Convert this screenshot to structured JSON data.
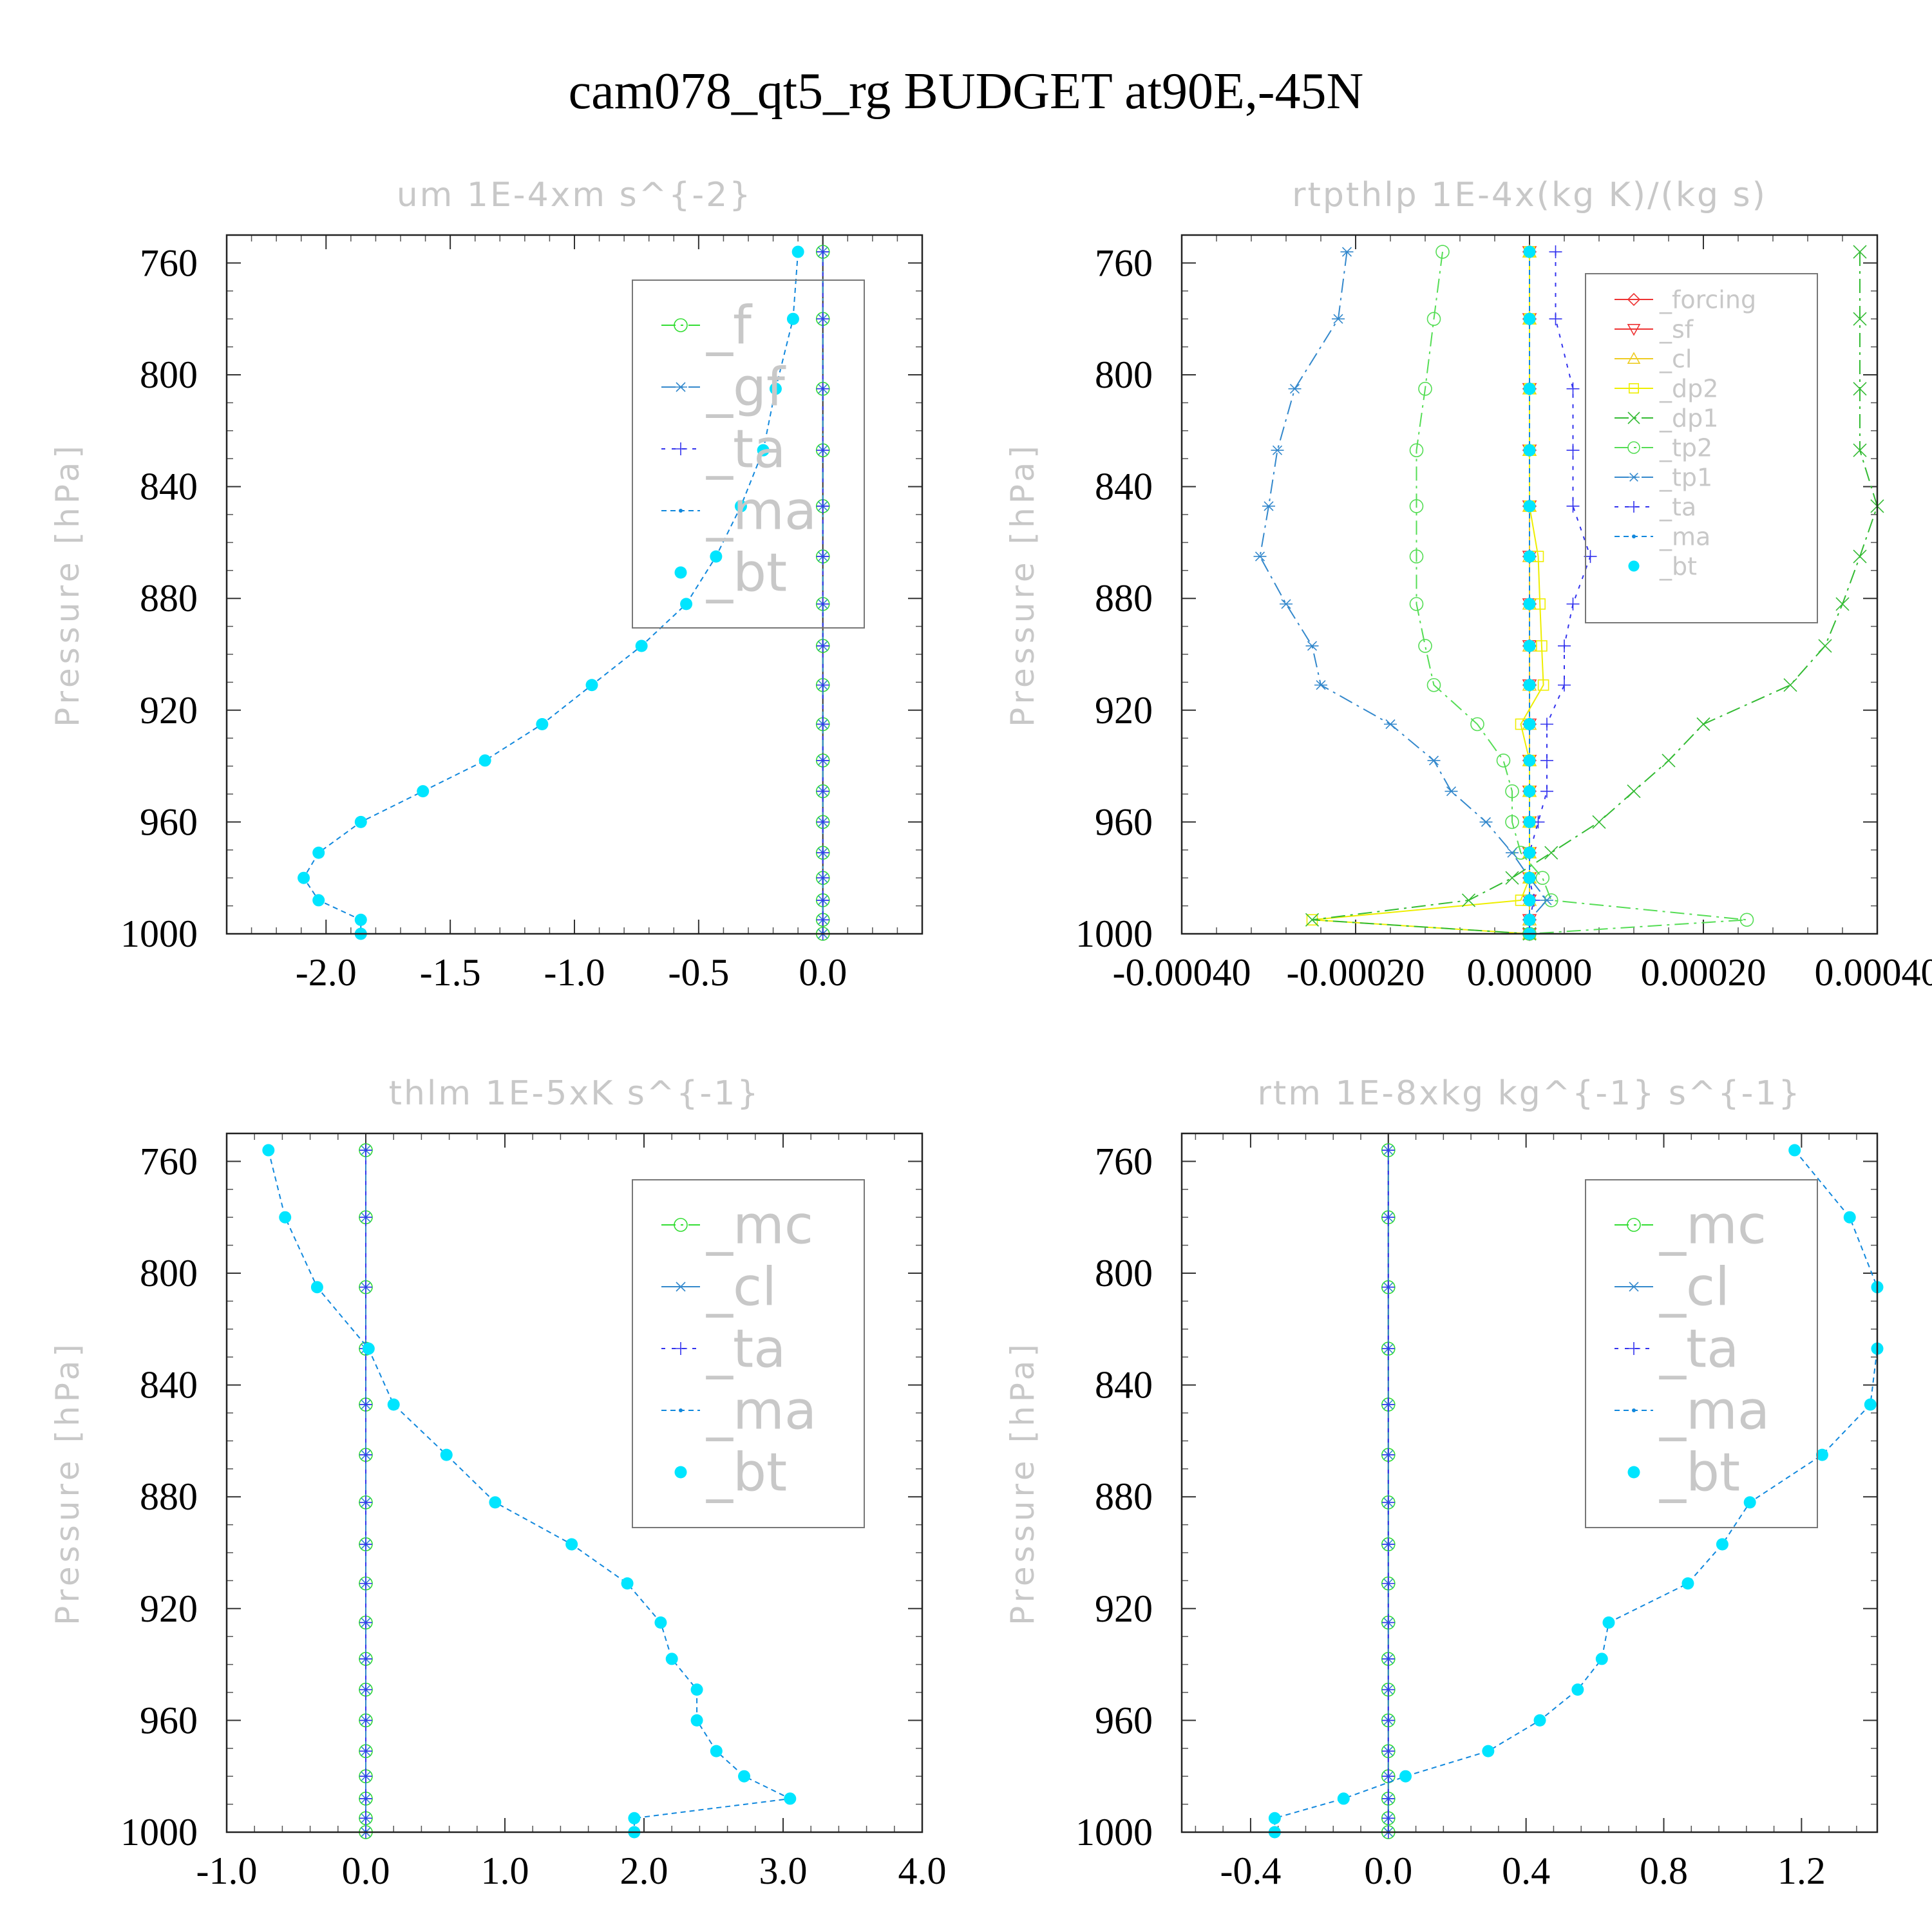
{
  "figure": {
    "title": "cam078_qt5_rg  BUDGET at90E,-45N"
  },
  "chart_data": [
    {
      "id": "um",
      "type": "line",
      "title": "um   1E-4xm s^{-2}",
      "ylabel": "Pressure [hPa]",
      "xlim": [
        -2.4,
        0.4
      ],
      "ylim": [
        1000,
        750
      ],
      "xticks": [
        -2.0,
        -1.5,
        -1.0,
        -0.5,
        0.0
      ],
      "xtick_labels": [
        "-2.0",
        "-1.5",
        "-1.0",
        "-0.5",
        "0.0"
      ],
      "yticks": [
        760,
        800,
        840,
        880,
        920,
        960,
        1000
      ],
      "ytick_labels": [
        "760",
        "800",
        "840",
        "880",
        "920",
        "960",
        "1000"
      ],
      "levels": [
        756,
        780,
        805,
        827,
        847,
        865,
        882,
        897,
        911,
        925,
        938,
        949,
        960,
        971,
        980,
        988,
        995,
        1000
      ],
      "series": [
        {
          "name": "_f",
          "color": "#33dd33",
          "marker": "circle",
          "values": [
            0,
            0,
            0,
            0,
            0,
            0,
            0,
            0,
            0,
            0,
            0,
            0,
            0,
            0,
            0,
            0,
            0,
            0
          ]
        },
        {
          "name": "_gf",
          "color": "#3388cc",
          "marker": "asterisk",
          "values": [
            0,
            0,
            0,
            0,
            0,
            0,
            0,
            0,
            0,
            0,
            0,
            0,
            0,
            0,
            0,
            0,
            0,
            0
          ]
        },
        {
          "name": "_ta",
          "color": "#3333ee",
          "marker": "plus",
          "values": [
            0,
            0,
            0,
            0,
            0,
            0,
            0,
            0,
            0,
            0,
            0,
            0,
            0,
            0,
            0,
            0,
            0,
            0
          ]
        },
        {
          "name": "_ma",
          "color": "#1188dd",
          "marker": "dot",
          "values": [
            -0.1,
            -0.12,
            -0.19,
            -0.24,
            -0.33,
            -0.43,
            -0.55,
            -0.73,
            -0.93,
            -1.13,
            -1.36,
            -1.61,
            -1.86,
            -2.03,
            -2.09,
            -2.03,
            -1.86,
            -1.86
          ]
        },
        {
          "name": "_bt",
          "color": "#00e5ff",
          "marker": "bigdot",
          "values": [
            -0.1,
            -0.12,
            -0.19,
            -0.24,
            -0.33,
            -0.43,
            -0.55,
            -0.73,
            -0.93,
            -1.13,
            -1.36,
            -1.61,
            -1.86,
            -2.03,
            -2.09,
            -2.03,
            -1.86,
            -1.86
          ]
        }
      ]
    },
    {
      "id": "rtpthlp",
      "type": "line",
      "title": "rtpthlp   1E-4x(kg K)/(kg s)",
      "ylabel": "Pressure [hPa]",
      "xlim": [
        -0.0004,
        0.0004
      ],
      "ylim": [
        1000,
        750
      ],
      "xticks": [
        -0.0004,
        -0.0002,
        0.0,
        0.0002,
        0.0004
      ],
      "xtick_labels": [
        "-0.00040",
        "-0.00020",
        "0.00000",
        "0.00020",
        "0.00040"
      ],
      "yticks": [
        760,
        800,
        840,
        880,
        920,
        960,
        1000
      ],
      "ytick_labels": [
        "760",
        "800",
        "840",
        "880",
        "920",
        "960",
        "1000"
      ],
      "levels": [
        756,
        780,
        805,
        827,
        847,
        865,
        882,
        897,
        911,
        925,
        938,
        949,
        960,
        971,
        980,
        988,
        995,
        1000
      ],
      "series": [
        {
          "name": "_forcing",
          "color": "#ee3333",
          "marker": "diamond",
          "values": [
            0,
            0,
            0,
            0,
            0,
            0,
            0,
            0,
            0,
            0,
            0,
            0,
            0,
            0,
            0,
            0,
            0,
            0
          ]
        },
        {
          "name": "_sf",
          "color": "#ee3333",
          "marker": "tri-down",
          "values": [
            0,
            0,
            0,
            0,
            0,
            0,
            0,
            0,
            0,
            0,
            0,
            0,
            0,
            0,
            0,
            0,
            0,
            0
          ]
        },
        {
          "name": "_cl",
          "color": "#eecc22",
          "marker": "tri-up",
          "values": [
            0,
            0,
            0,
            0,
            0,
            0,
            0,
            0,
            0,
            0,
            0,
            0,
            0,
            0,
            0,
            0,
            0,
            0
          ]
        },
        {
          "name": "_dp2",
          "color": "#eeee00",
          "marker": "square",
          "values": [
            0,
            0,
            0,
            0,
            0,
            1e-05,
            1.2e-05,
            1.4e-05,
            1.6e-05,
            -1e-05,
            0,
            0,
            0,
            0,
            0,
            -1e-05,
            -0.00025,
            0
          ]
        },
        {
          "name": "_dp1",
          "color": "#33bb33",
          "marker": "x",
          "values": [
            0.00038,
            0.00038,
            0.00038,
            0.00038,
            0.0004,
            0.00038,
            0.00036,
            0.00034,
            0.0003,
            0.0002,
            0.00016,
            0.00012,
            8e-05,
            2.5e-05,
            -2e-05,
            -7e-05,
            -0.00025,
            0
          ]
        },
        {
          "name": "_tp2",
          "color": "#55dd55",
          "marker": "circle",
          "values": [
            -0.0001,
            -0.00011,
            -0.00012,
            -0.00013,
            -0.00013,
            -0.00013,
            -0.00013,
            -0.00012,
            -0.00011,
            -6e-05,
            -3e-05,
            -2e-05,
            -2e-05,
            -1e-05,
            1.5e-05,
            2.5e-05,
            0.00025,
            0
          ]
        },
        {
          "name": "_tp1",
          "color": "#3388cc",
          "marker": "asterisk",
          "values": [
            -0.00021,
            -0.00022,
            -0.00027,
            -0.00029,
            -0.0003,
            -0.00031,
            -0.00028,
            -0.00025,
            -0.00024,
            -0.00016,
            -0.00011,
            -9e-05,
            -5e-05,
            -2e-05,
            0,
            2e-05,
            0,
            0
          ]
        },
        {
          "name": "_ta",
          "color": "#3333ee",
          "marker": "plus",
          "values": [
            3e-05,
            3e-05,
            5e-05,
            5e-05,
            5e-05,
            7e-05,
            5e-05,
            4e-05,
            4e-05,
            2e-05,
            2e-05,
            2e-05,
            1e-05,
            0,
            0,
            5e-06,
            0,
            0
          ]
        },
        {
          "name": "_ma",
          "color": "#1188dd",
          "marker": "dot",
          "values": [
            0,
            0,
            0,
            0,
            0,
            0,
            0,
            0,
            0,
            0,
            0,
            0,
            0,
            0,
            0,
            0,
            0,
            0
          ]
        },
        {
          "name": "_bt",
          "color": "#00e5ff",
          "marker": "bigdot",
          "values": [
            0,
            0,
            0,
            0,
            0,
            0,
            0,
            0,
            0,
            0,
            0,
            0,
            0,
            0,
            0,
            0,
            0,
            0
          ]
        }
      ]
    },
    {
      "id": "thlm",
      "type": "line",
      "title": "thlm   1E-5xK s^{-1}",
      "ylabel": "Pressure [hPa]",
      "xlim": [
        -1.0,
        4.0
      ],
      "ylim": [
        1000,
        750
      ],
      "xticks": [
        -1.0,
        0.0,
        1.0,
        2.0,
        3.0,
        4.0
      ],
      "xtick_labels": [
        "-1.0",
        "0.0",
        "1.0",
        "2.0",
        "3.0",
        "4.0"
      ],
      "yticks": [
        760,
        800,
        840,
        880,
        920,
        960,
        1000
      ],
      "ytick_labels": [
        "760",
        "800",
        "840",
        "880",
        "920",
        "960",
        "1000"
      ],
      "levels": [
        756,
        780,
        805,
        827,
        847,
        865,
        882,
        897,
        911,
        925,
        938,
        949,
        960,
        971,
        980,
        988,
        995,
        1000
      ],
      "series": [
        {
          "name": "_mc",
          "color": "#33dd33",
          "marker": "circle",
          "values": [
            0,
            0,
            0,
            0,
            0,
            0,
            0,
            0,
            0,
            0,
            0,
            0,
            0,
            0,
            0,
            0,
            0,
            0
          ]
        },
        {
          "name": "_cl",
          "color": "#3388cc",
          "marker": "asterisk",
          "values": [
            0,
            0,
            0,
            0,
            0,
            0,
            0,
            0,
            0,
            0,
            0,
            0,
            0,
            0,
            0,
            0,
            0,
            0
          ]
        },
        {
          "name": "_ta",
          "color": "#3333ee",
          "marker": "plus",
          "values": [
            0,
            0,
            0,
            0,
            0,
            0,
            0,
            0,
            0,
            0,
            0,
            0,
            0,
            0,
            0,
            0,
            0,
            0
          ]
        },
        {
          "name": "_ma",
          "color": "#1188dd",
          "marker": "dot",
          "values": [
            -0.7,
            -0.58,
            -0.35,
            0.02,
            0.2,
            0.58,
            0.93,
            1.48,
            1.88,
            2.12,
            2.2,
            2.38,
            2.38,
            2.52,
            2.72,
            3.05,
            1.93,
            1.93
          ]
        },
        {
          "name": "_bt",
          "color": "#00e5ff",
          "marker": "bigdot",
          "values": [
            -0.7,
            -0.58,
            -0.35,
            0.02,
            0.2,
            0.58,
            0.93,
            1.48,
            1.88,
            2.12,
            2.2,
            2.38,
            2.38,
            2.52,
            2.72,
            3.05,
            1.93,
            1.93
          ]
        }
      ]
    },
    {
      "id": "rtm",
      "type": "line",
      "title": "rtm   1E-8xkg kg^{-1} s^{-1}",
      "ylabel": "Pressure [hPa]",
      "xlim": [
        -0.6,
        1.42
      ],
      "ylim": [
        1000,
        750
      ],
      "xticks": [
        -0.4,
        0.0,
        0.4,
        0.8,
        1.2
      ],
      "xtick_labels": [
        "-0.4",
        "0.0",
        "0.4",
        "0.8",
        "1.2"
      ],
      "yticks": [
        760,
        800,
        840,
        880,
        920,
        960,
        1000
      ],
      "ytick_labels": [
        "760",
        "800",
        "840",
        "880",
        "920",
        "960",
        "1000"
      ],
      "levels": [
        756,
        780,
        805,
        827,
        847,
        865,
        882,
        897,
        911,
        925,
        938,
        949,
        960,
        971,
        980,
        988,
        995,
        1000
      ],
      "series": [
        {
          "name": "_mc",
          "color": "#33dd33",
          "marker": "circle",
          "values": [
            0,
            0,
            0,
            0,
            0,
            0,
            0,
            0,
            0,
            0,
            0,
            0,
            0,
            0,
            0,
            0,
            0,
            0
          ]
        },
        {
          "name": "_cl",
          "color": "#3388cc",
          "marker": "asterisk",
          "values": [
            0,
            0,
            0,
            0,
            0,
            0,
            0,
            0,
            0,
            0,
            0,
            0,
            0,
            0,
            0,
            0,
            0,
            0
          ]
        },
        {
          "name": "_ta",
          "color": "#3333ee",
          "marker": "plus",
          "values": [
            0,
            0,
            0,
            0,
            0,
            0,
            0,
            0,
            0,
            0,
            0,
            0,
            0,
            0,
            0,
            0,
            0,
            0
          ]
        },
        {
          "name": "_ma",
          "color": "#1188dd",
          "marker": "dot",
          "values": [
            1.18,
            1.34,
            1.42,
            1.42,
            1.4,
            1.26,
            1.05,
            0.97,
            0.87,
            0.64,
            0.62,
            0.55,
            0.44,
            0.29,
            0.05,
            -0.13,
            -0.33,
            -0.33
          ]
        },
        {
          "name": "_bt",
          "color": "#00e5ff",
          "marker": "bigdot",
          "values": [
            1.18,
            1.34,
            1.42,
            1.42,
            1.4,
            1.26,
            1.05,
            0.97,
            0.87,
            0.64,
            0.62,
            0.55,
            0.44,
            0.29,
            0.05,
            -0.13,
            -0.33,
            -0.33
          ]
        }
      ]
    }
  ]
}
